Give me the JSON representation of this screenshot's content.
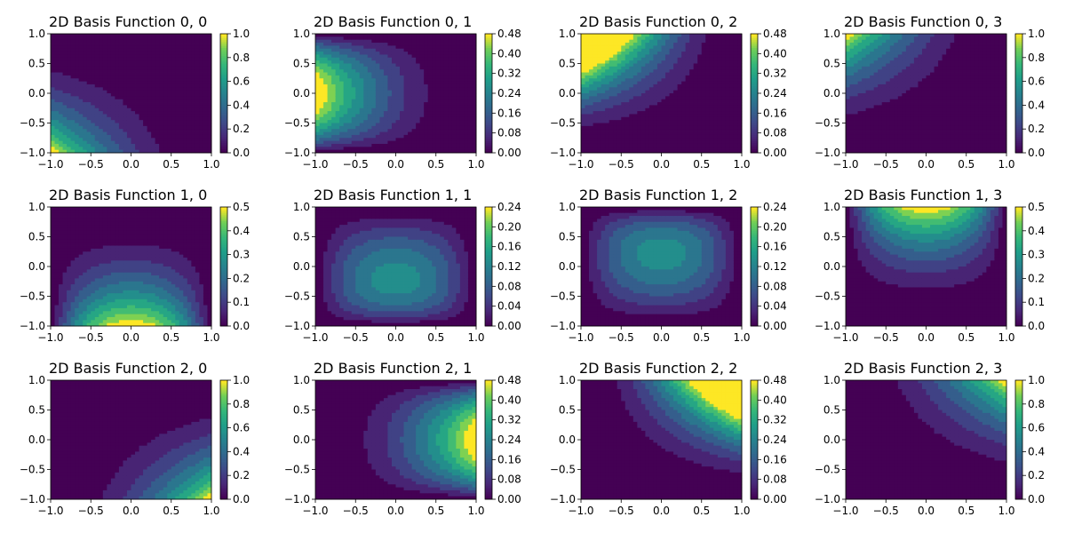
{
  "chart_data": [
    {
      "type": "heatmap",
      "title": "2D Basis Function 0, 0",
      "i": 0,
      "j": 0,
      "xlim": [
        -1,
        1
      ],
      "ylim": [
        -1,
        1
      ],
      "x_ticks": [
        "−1.0",
        "−0.5",
        "0.0",
        "0.5",
        "1.0"
      ],
      "y_ticks": [
        "1.0",
        "0.5",
        "0.0",
        "−0.5",
        "−1.0"
      ],
      "vmax": 1.0,
      "colorbar_ticks": [
        "0.0",
        "0.2",
        "0.4",
        "0.6",
        "0.8",
        "1.0"
      ],
      "colormap": "viridis"
    },
    {
      "type": "heatmap",
      "title": "2D Basis Function 0, 1",
      "i": 0,
      "j": 1,
      "xlim": [
        -1,
        1
      ],
      "ylim": [
        -1,
        1
      ],
      "x_ticks": [
        "−1.0",
        "−0.5",
        "0.0",
        "0.5",
        "1.0"
      ],
      "y_ticks": [
        "1.0",
        "0.5",
        "0.0",
        "−0.5",
        "−1.0"
      ],
      "vmax": 0.48,
      "colorbar_ticks": [
        "0.00",
        "0.08",
        "0.16",
        "0.24",
        "0.32",
        "0.40",
        "0.48"
      ],
      "colormap": "viridis"
    },
    {
      "type": "heatmap",
      "title": "2D Basis Function 0, 2",
      "i": 0,
      "j": 2,
      "xlim": [
        -1,
        1
      ],
      "ylim": [
        -1,
        1
      ],
      "x_ticks": [
        "−1.0",
        "−0.5",
        "0.0",
        "0.5",
        "1.0"
      ],
      "y_ticks": [
        "1.0",
        "0.5",
        "0.0",
        "−0.5",
        "−1.0"
      ],
      "vmax": 0.48,
      "colorbar_ticks": [
        "0.00",
        "0.08",
        "0.16",
        "0.24",
        "0.32",
        "0.40",
        "0.48"
      ],
      "colormap": "viridis"
    },
    {
      "type": "heatmap",
      "title": "2D Basis Function 0, 3",
      "i": 0,
      "j": 3,
      "xlim": [
        -1,
        1
      ],
      "ylim": [
        -1,
        1
      ],
      "x_ticks": [
        "−1.0",
        "−0.5",
        "0.0",
        "0.5",
        "1.0"
      ],
      "y_ticks": [
        "1.0",
        "0.5",
        "0.0",
        "−0.5",
        "−1.0"
      ],
      "vmax": 1.0,
      "colorbar_ticks": [
        "0.0",
        "0.2",
        "0.4",
        "0.6",
        "0.8",
        "1.0"
      ],
      "colormap": "viridis"
    },
    {
      "type": "heatmap",
      "title": "2D Basis Function 1, 0",
      "i": 1,
      "j": 0,
      "xlim": [
        -1,
        1
      ],
      "ylim": [
        -1,
        1
      ],
      "x_ticks": [
        "−1.0",
        "−0.5",
        "0.0",
        "0.5",
        "1.0"
      ],
      "y_ticks": [
        "1.0",
        "0.5",
        "0.0",
        "−0.5",
        "−1.0"
      ],
      "vmax": 0.5,
      "colorbar_ticks": [
        "0.0",
        "0.1",
        "0.2",
        "0.3",
        "0.4",
        "0.5"
      ],
      "colormap": "viridis"
    },
    {
      "type": "heatmap",
      "title": "2D Basis Function 1, 1",
      "i": 1,
      "j": 1,
      "xlim": [
        -1,
        1
      ],
      "ylim": [
        -1,
        1
      ],
      "x_ticks": [
        "−1.0",
        "−0.5",
        "0.0",
        "0.5",
        "1.0"
      ],
      "y_ticks": [
        "1.0",
        "0.5",
        "0.0",
        "−0.5",
        "−1.0"
      ],
      "vmax": 0.24,
      "colorbar_ticks": [
        "0.00",
        "0.04",
        "0.08",
        "0.12",
        "0.16",
        "0.20",
        "0.24"
      ],
      "colormap": "viridis"
    },
    {
      "type": "heatmap",
      "title": "2D Basis Function 1, 2",
      "i": 1,
      "j": 2,
      "xlim": [
        -1,
        1
      ],
      "ylim": [
        -1,
        1
      ],
      "x_ticks": [
        "−1.0",
        "−0.5",
        "0.0",
        "0.5",
        "1.0"
      ],
      "y_ticks": [
        "1.0",
        "0.5",
        "0.0",
        "−0.5",
        "−1.0"
      ],
      "vmax": 0.24,
      "colorbar_ticks": [
        "0.00",
        "0.04",
        "0.08",
        "0.12",
        "0.16",
        "0.20",
        "0.24"
      ],
      "colormap": "viridis"
    },
    {
      "type": "heatmap",
      "title": "2D Basis Function 1, 3",
      "i": 1,
      "j": 3,
      "xlim": [
        -1,
        1
      ],
      "ylim": [
        -1,
        1
      ],
      "x_ticks": [
        "−1.0",
        "−0.5",
        "0.0",
        "0.5",
        "1.0"
      ],
      "y_ticks": [
        "1.0",
        "0.5",
        "0.0",
        "−0.5",
        "−1.0"
      ],
      "vmax": 0.5,
      "colorbar_ticks": [
        "0.0",
        "0.1",
        "0.2",
        "0.3",
        "0.4",
        "0.5"
      ],
      "colormap": "viridis"
    },
    {
      "type": "heatmap",
      "title": "2D Basis Function 2, 0",
      "i": 2,
      "j": 0,
      "xlim": [
        -1,
        1
      ],
      "ylim": [
        -1,
        1
      ],
      "x_ticks": [
        "−1.0",
        "−0.5",
        "0.0",
        "0.5",
        "1.0"
      ],
      "y_ticks": [
        "1.0",
        "0.5",
        "0.0",
        "−0.5",
        "−1.0"
      ],
      "vmax": 1.0,
      "colorbar_ticks": [
        "0.0",
        "0.2",
        "0.4",
        "0.6",
        "0.8",
        "1.0"
      ],
      "colormap": "viridis"
    },
    {
      "type": "heatmap",
      "title": "2D Basis Function 2, 1",
      "i": 2,
      "j": 1,
      "xlim": [
        -1,
        1
      ],
      "ylim": [
        -1,
        1
      ],
      "x_ticks": [
        "−1.0",
        "−0.5",
        "0.0",
        "0.5",
        "1.0"
      ],
      "y_ticks": [
        "1.0",
        "0.5",
        "0.0",
        "−0.5",
        "−1.0"
      ],
      "vmax": 0.48,
      "colorbar_ticks": [
        "0.00",
        "0.08",
        "0.16",
        "0.24",
        "0.32",
        "0.40",
        "0.48"
      ],
      "colormap": "viridis"
    },
    {
      "type": "heatmap",
      "title": "2D Basis Function 2, 2",
      "i": 2,
      "j": 2,
      "xlim": [
        -1,
        1
      ],
      "ylim": [
        -1,
        1
      ],
      "x_ticks": [
        "−1.0",
        "−0.5",
        "0.0",
        "0.5",
        "1.0"
      ],
      "y_ticks": [
        "1.0",
        "0.5",
        "0.0",
        "−0.5",
        "−1.0"
      ],
      "vmax": 0.48,
      "colorbar_ticks": [
        "0.00",
        "0.08",
        "0.16",
        "0.24",
        "0.32",
        "0.40",
        "0.48"
      ],
      "colormap": "viridis"
    },
    {
      "type": "heatmap",
      "title": "2D Basis Function 2, 3",
      "i": 2,
      "j": 3,
      "xlim": [
        -1,
        1
      ],
      "ylim": [
        -1,
        1
      ],
      "x_ticks": [
        "−1.0",
        "−0.5",
        "0.0",
        "0.5",
        "1.0"
      ],
      "y_ticks": [
        "1.0",
        "0.5",
        "0.0",
        "−0.5",
        "−1.0"
      ],
      "vmax": 1.0,
      "colorbar_ticks": [
        "0.0",
        "0.2",
        "0.4",
        "0.6",
        "0.8",
        "1.0"
      ],
      "colormap": "viridis"
    }
  ]
}
